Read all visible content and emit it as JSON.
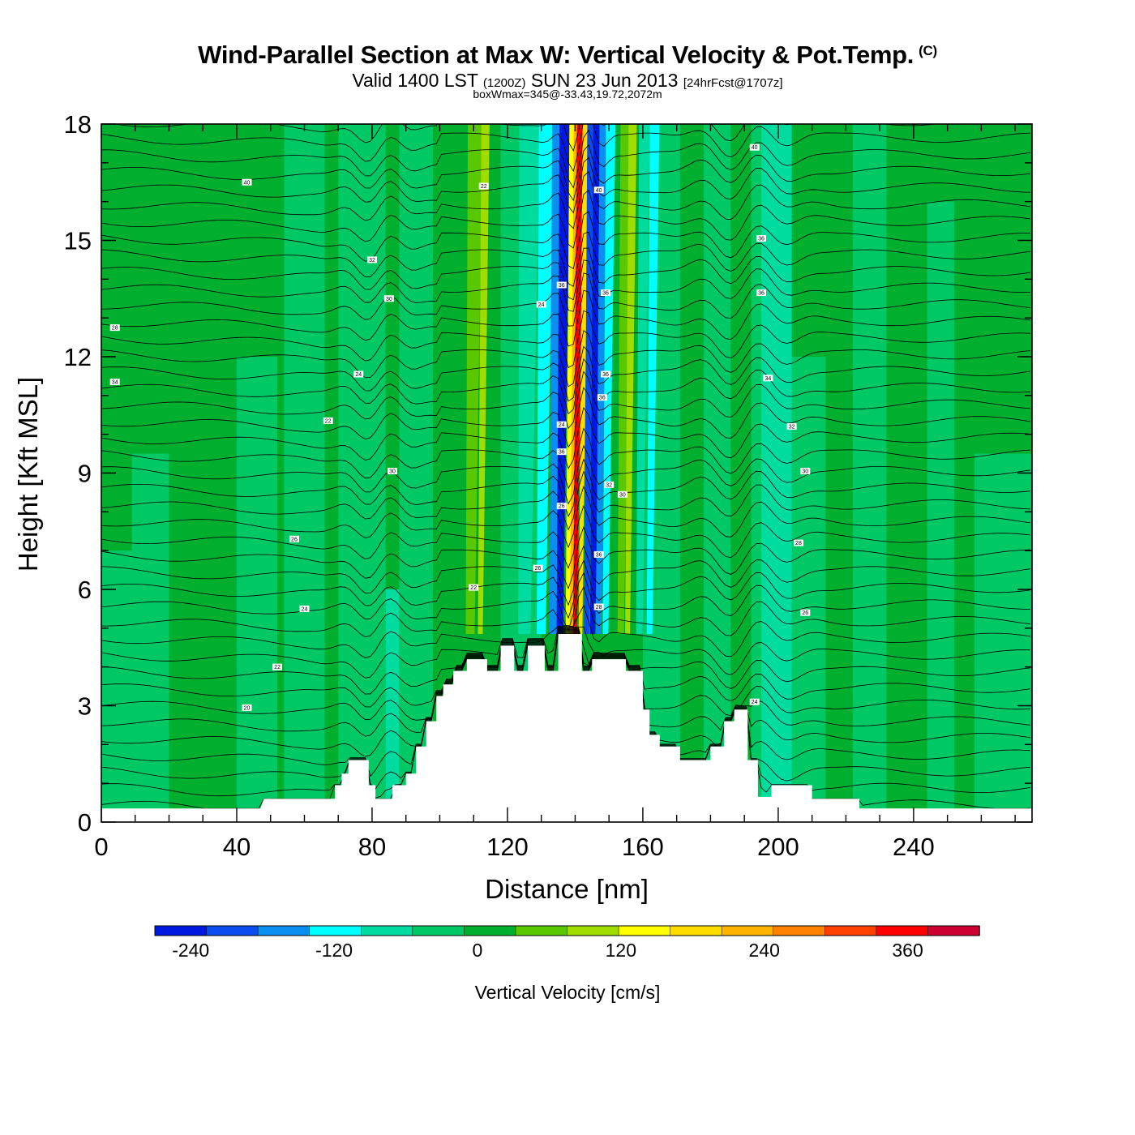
{
  "title": "Wind-Parallel Section at Max W: Vertical Velocity & Pot.Temp.",
  "title_mark": "(C)",
  "valid_prefix": "Valid 1400 LST",
  "valid_utc": "(1200Z)",
  "valid_date": "SUN 23 Jun 2013",
  "valid_fcst": "[24hrFcst@1707z]",
  "box_wmax": "boxWmax=345@-33.43,19.72,2072m",
  "colorbar": {
    "label": "Vertical Velocity [cm/s]",
    "tick_values": [
      "-240",
      "-120",
      "0",
      "120",
      "240",
      "360"
    ],
    "range": [
      -270,
      420
    ],
    "colors": [
      "#0019e0",
      "#0a4cf0",
      "#0a8ff0",
      "#00ffff",
      "#00dca0",
      "#00c864",
      "#00af2d",
      "#5ac800",
      "#a0dc00",
      "#ffff00",
      "#ffdc00",
      "#ffb400",
      "#ff8200",
      "#ff4100",
      "#ff0000",
      "#cd0032"
    ]
  },
  "chart_data": {
    "type": "heatmap",
    "xlabel": "Distance [nm]",
    "ylabel": "Height [Kft MSL]",
    "xlim": [
      0,
      275
    ],
    "ylim": [
      0,
      18
    ],
    "x_ticks": [
      "0",
      "40",
      "80",
      "120",
      "160",
      "200",
      "240"
    ],
    "y_ticks": [
      "0",
      "3",
      "6",
      "9",
      "12",
      "15",
      "18"
    ],
    "grid": false,
    "terrain_height_kft": [
      [
        0,
        0.35
      ],
      [
        47,
        0.35
      ],
      [
        48,
        0.6
      ],
      [
        69,
        0.6
      ],
      [
        69,
        0.95
      ],
      [
        71,
        0.95
      ],
      [
        71,
        1.25
      ],
      [
        73,
        1.25
      ],
      [
        73,
        1.6
      ],
      [
        79,
        1.6
      ],
      [
        79,
        0.95
      ],
      [
        81,
        0.95
      ],
      [
        81,
        0.6
      ],
      [
        86,
        0.6
      ],
      [
        86,
        0.95
      ],
      [
        90,
        0.95
      ],
      [
        90,
        1.25
      ],
      [
        93,
        1.25
      ],
      [
        93,
        1.95
      ],
      [
        96,
        1.95
      ],
      [
        96,
        2.6
      ],
      [
        99,
        2.6
      ],
      [
        99,
        3.25
      ],
      [
        101,
        3.25
      ],
      [
        101,
        3.55
      ],
      [
        104,
        3.55
      ],
      [
        104,
        3.9
      ],
      [
        108,
        3.9
      ],
      [
        108,
        4.2
      ],
      [
        114,
        4.2
      ],
      [
        114,
        3.9
      ],
      [
        118,
        3.9
      ],
      [
        118,
        4.55
      ],
      [
        122,
        4.55
      ],
      [
        122,
        3.9
      ],
      [
        126,
        3.9
      ],
      [
        126,
        4.55
      ],
      [
        131,
        4.55
      ],
      [
        131,
        3.9
      ],
      [
        135,
        3.9
      ],
      [
        135,
        4.85
      ],
      [
        142,
        4.85
      ],
      [
        142,
        3.9
      ],
      [
        145,
        3.9
      ],
      [
        145,
        4.2
      ],
      [
        155,
        4.2
      ],
      [
        155,
        3.9
      ],
      [
        160,
        3.9
      ],
      [
        160,
        2.9
      ],
      [
        162,
        2.9
      ],
      [
        162,
        2.25
      ],
      [
        165,
        2.25
      ],
      [
        165,
        1.95
      ],
      [
        171,
        1.95
      ],
      [
        171,
        1.6
      ],
      [
        180,
        1.6
      ],
      [
        180,
        1.95
      ],
      [
        184,
        1.95
      ],
      [
        184,
        2.6
      ],
      [
        187,
        2.6
      ],
      [
        187,
        2.9
      ],
      [
        191,
        2.9
      ],
      [
        191,
        1.6
      ],
      [
        194,
        1.6
      ],
      [
        194,
        0.65
      ],
      [
        198,
        0.65
      ],
      [
        198,
        0.95
      ],
      [
        210,
        0.95
      ],
      [
        210,
        0.6
      ],
      [
        224,
        0.6
      ],
      [
        224,
        0.35
      ],
      [
        275,
        0.35
      ]
    ],
    "updraft_core": {
      "x_at_5kft": 140,
      "x_at_18kft": 141.5,
      "max_cm_s": 345
    },
    "series": [
      {
        "name": "Vertical Velocity",
        "units": "cm/s"
      },
      {
        "name": "Pot.Temp.",
        "contour_labels": [
          "20",
          "22",
          "24",
          "26",
          "28",
          "30",
          "32",
          "34",
          "36",
          "38",
          "40"
        ]
      }
    ]
  }
}
